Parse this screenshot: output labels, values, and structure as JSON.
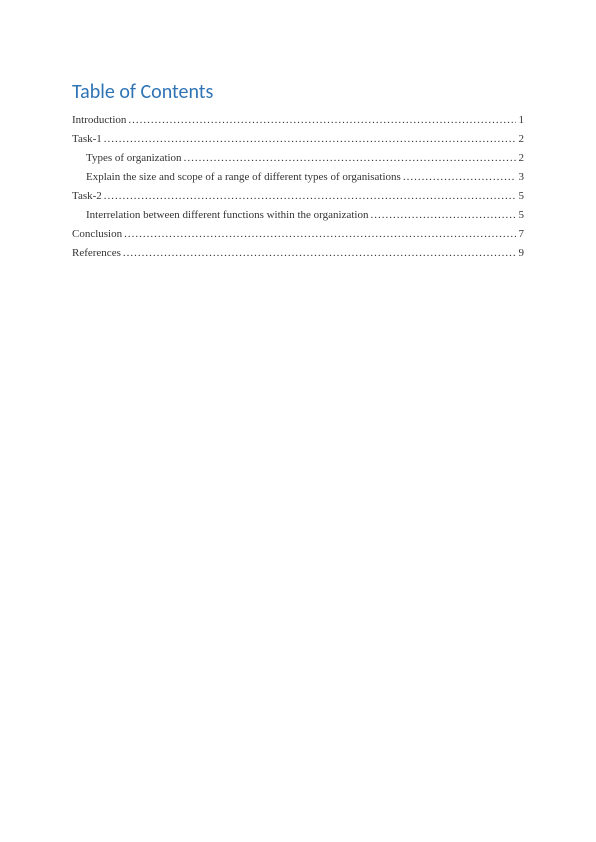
{
  "title": "Table of Contents",
  "title_color": "#2e74b5",
  "title_fontsize": 20,
  "entry_fontsize": 11,
  "entry_color": "#333333",
  "background_color": "#ffffff",
  "entries": [
    {
      "label": "Introduction",
      "page": "1",
      "indent": 0
    },
    {
      "label": "Task-1",
      "page": "2",
      "indent": 0
    },
    {
      "label": "Types of organization",
      "page": "2",
      "indent": 1
    },
    {
      "label": "Explain the size and scope of a range of different types of organisations",
      "page": "3",
      "indent": 1
    },
    {
      "label": "Task-2",
      "page": "5",
      "indent": 0
    },
    {
      "label": "Interrelation between different functions within the organization",
      "page": "5",
      "indent": 1
    },
    {
      "label": "Conclusion",
      "page": "7",
      "indent": 0
    },
    {
      "label": "References",
      "page": "9",
      "indent": 0
    }
  ]
}
